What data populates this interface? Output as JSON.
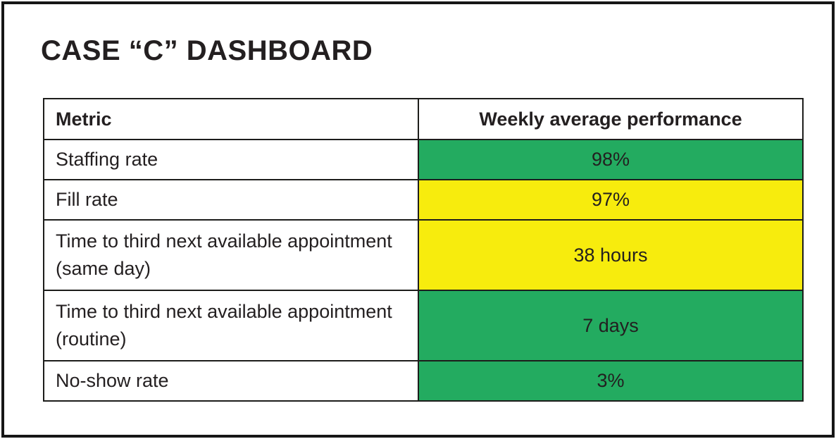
{
  "title": "CASE “C” DASHBOARD",
  "table": {
    "columns": [
      {
        "label": "Metric"
      },
      {
        "label": "Weekly average performance"
      }
    ],
    "rows": [
      {
        "metric": "Staffing rate",
        "value": "98%",
        "status": "green"
      },
      {
        "metric": "Fill rate",
        "value": "97%",
        "status": "yellow"
      },
      {
        "metric": "Time to third next available appointment (same day)",
        "value": "38 hours",
        "status": "yellow"
      },
      {
        "metric": "Time to third next available appointment (routine)",
        "value": "7 days",
        "status": "green"
      },
      {
        "metric": "No-show rate",
        "value": "3%",
        "status": "green"
      }
    ]
  },
  "colors": {
    "green": "#23ab60",
    "yellow": "#f7ec0d",
    "text": "#231f20",
    "border": "#1d1d1b"
  },
  "chart_data": {
    "type": "table",
    "title": "CASE “C” DASHBOARD",
    "columns": [
      "Metric",
      "Weekly average performance"
    ],
    "rows": [
      [
        "Staffing rate",
        "98%"
      ],
      [
        "Fill rate",
        "97%"
      ],
      [
        "Time to third next available appointment (same day)",
        "38 hours"
      ],
      [
        "Time to third next available appointment (routine)",
        "7 days"
      ],
      [
        "No-show rate",
        "3%"
      ]
    ],
    "row_statuses": [
      "green",
      "yellow",
      "yellow",
      "green",
      "green"
    ],
    "status_colors": {
      "green": "#23ab60",
      "yellow": "#f7ec0d"
    },
    "legend_position": "none",
    "grid": true
  }
}
